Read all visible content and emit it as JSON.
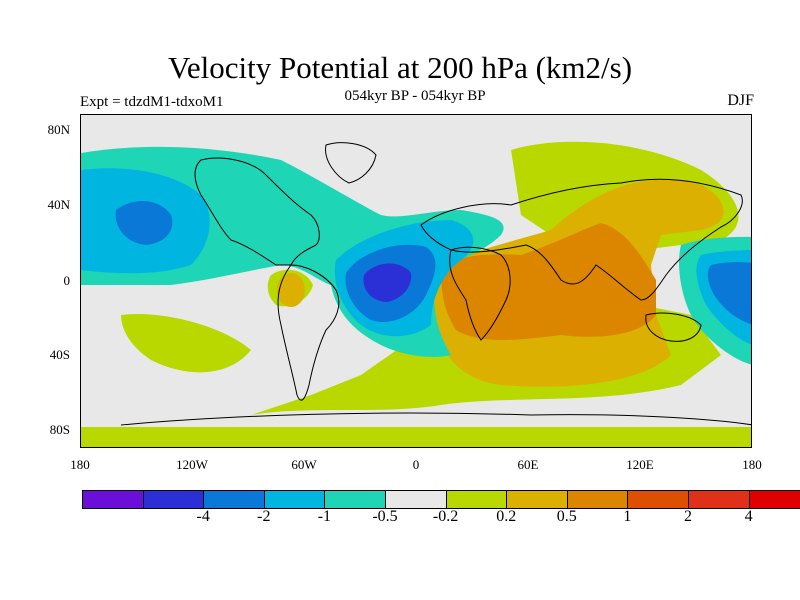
{
  "title": "Velocity Potential at 200 hPa (km2/s)",
  "subtitle": "054kyr BP - 054kyr BP",
  "left_label": "Expt = tdzdM1-tdxoM1",
  "right_label": "DJF",
  "lat_labels": [
    "80N",
    "40N",
    "0",
    "40S",
    "80S"
  ],
  "lon_labels": [
    "180",
    "120W",
    "60W",
    "0",
    "60E",
    "120E",
    "180"
  ],
  "colorbar": {
    "colors": [
      "#6a0fd8",
      "#2a2fd6",
      "#0a78d6",
      "#00b6e0",
      "#1ed6b6",
      "#e8e8e8",
      "#b8d800",
      "#dcb000",
      "#dc8600",
      "#dc5000",
      "#e0301a",
      "#e00000"
    ],
    "labels": [
      "-4",
      "-2",
      "-1",
      "-0.5",
      "-0.2",
      "0.2",
      "0.5",
      "1",
      "2",
      "4"
    ]
  }
}
